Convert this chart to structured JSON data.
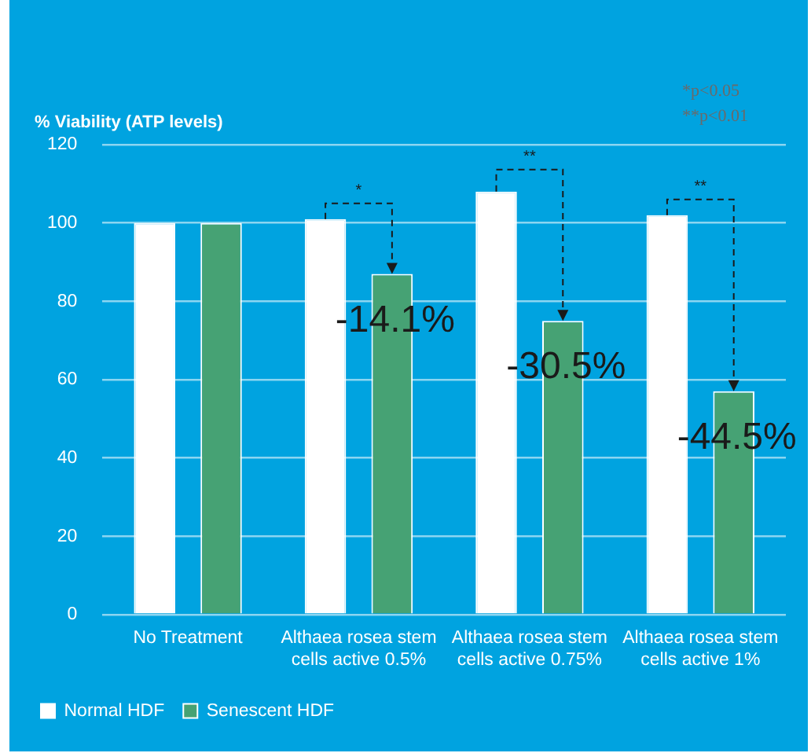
{
  "chart_data": {
    "type": "bar",
    "ylabel": "% Viability (ATP levels)",
    "categories": [
      "No Treatment",
      "Althaea rosea stem cells active 0.5%",
      "Althaea rosea stem cells active 0.75%",
      "Althaea rosea stem cells active 1%"
    ],
    "series": [
      {
        "name": "Normal HDF",
        "color": "#ffffff",
        "values": [
          100,
          101,
          108,
          102
        ]
      },
      {
        "name": "Senescent HDF",
        "color": "#46a274",
        "values": [
          100,
          87,
          75,
          57
        ]
      }
    ],
    "ylim": [
      0,
      120
    ],
    "yticks": [
      0,
      20,
      40,
      60,
      80,
      100,
      120
    ],
    "grid": "y",
    "legend": "bottom left",
    "annotations": [
      "*",
      "**",
      "**",
      "-14.1%",
      "-30.5%",
      "-44.5%",
      "*p<0.05",
      "**p<0.01"
    ]
  }
}
